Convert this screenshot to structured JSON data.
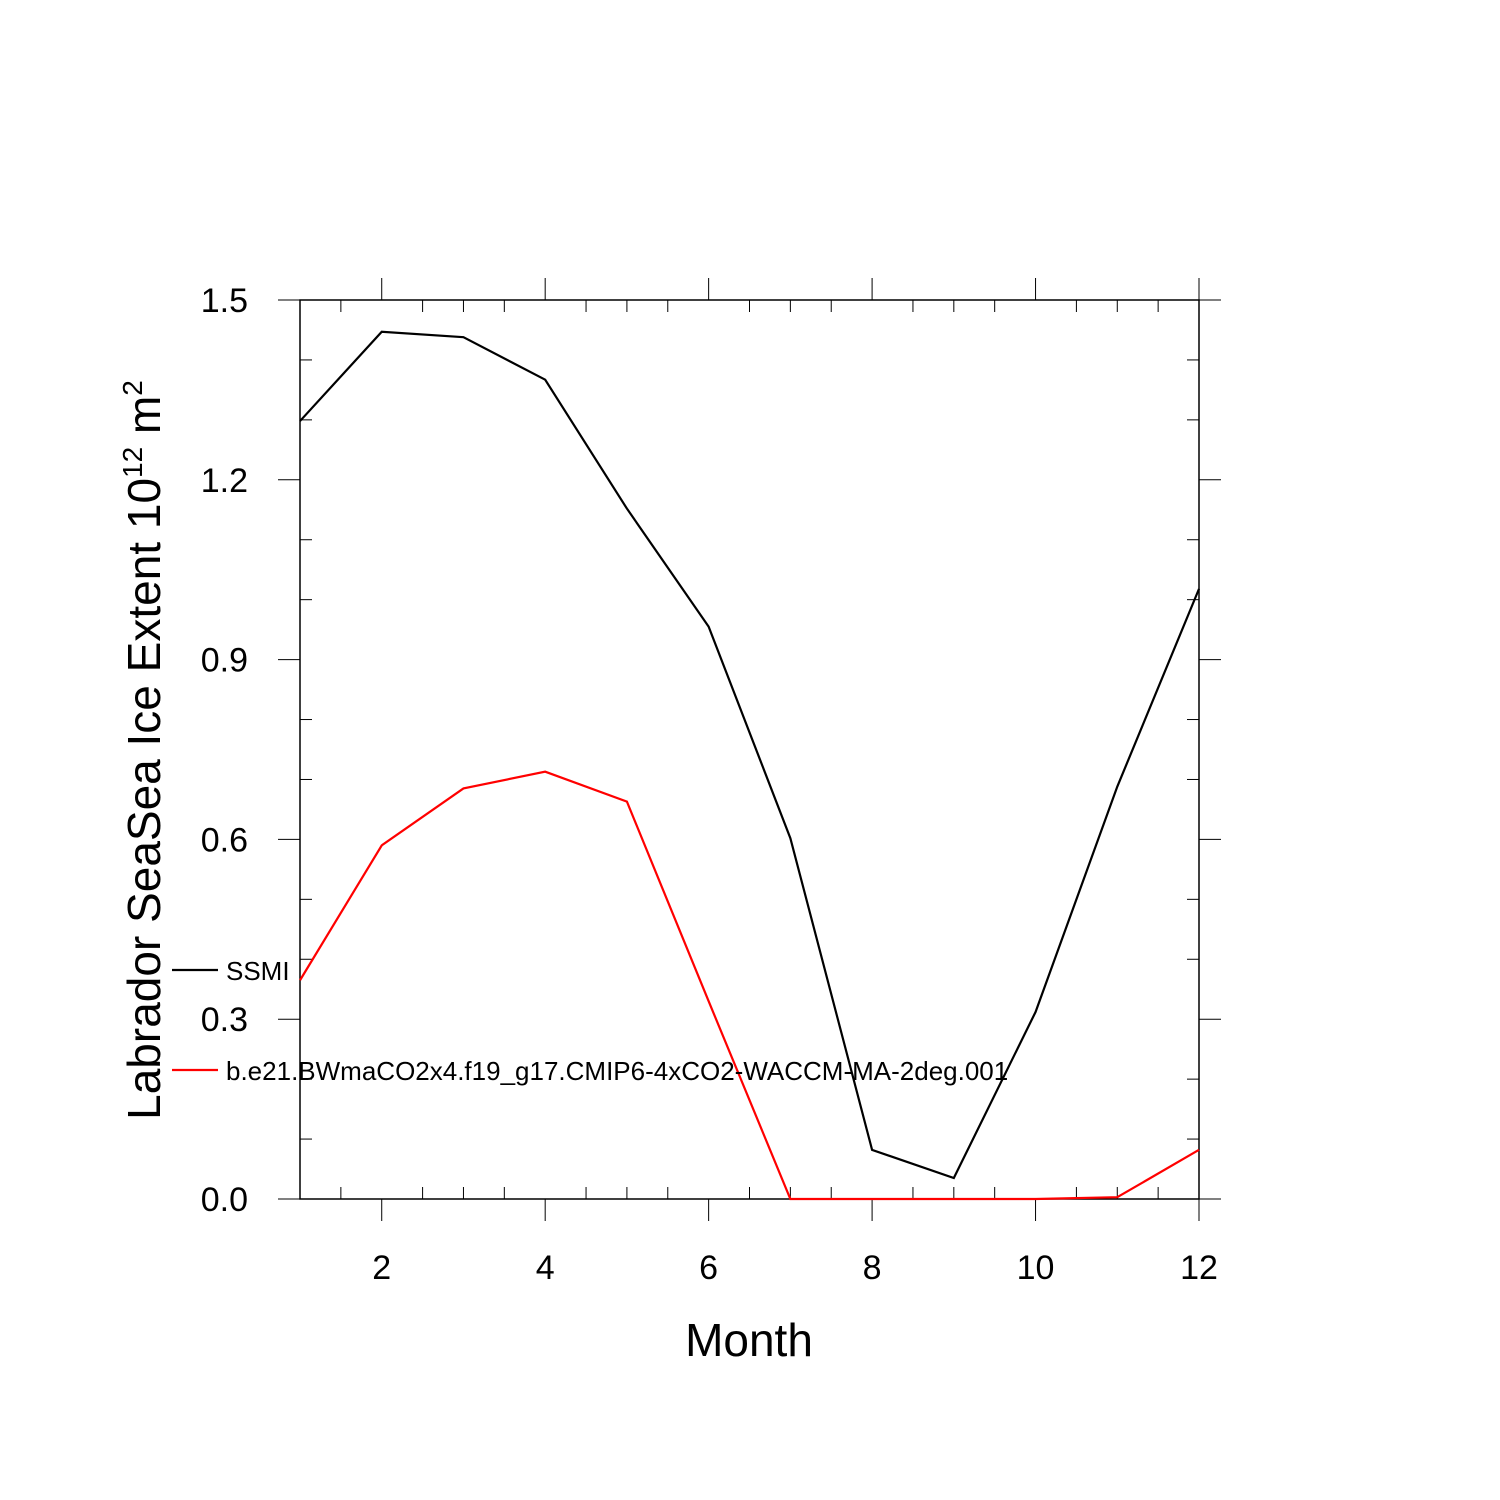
{
  "chart_data": {
    "type": "line",
    "xlabel": "Month",
    "ylabel": [
      "Labrador SeaSea Ice Extent 10",
      "12",
      " m",
      "2"
    ],
    "x": [
      1,
      2,
      3,
      4,
      5,
      6,
      7,
      8,
      9,
      10,
      11,
      12
    ],
    "series": [
      {
        "name": "SSMI",
        "color": "#000000",
        "values": [
          1.298,
          1.447,
          1.438,
          1.367,
          1.152,
          0.955,
          0.602,
          0.082,
          0.035,
          0.312,
          0.688,
          1.018
        ]
      },
      {
        "name": "b.e21.BWmaCO2x4.f19_g17.CMIP6-4xCO2-WACCM-MA-2deg.001",
        "color": "#ff0000",
        "values": [
          0.365,
          0.59,
          0.685,
          0.713,
          0.663,
          0.33,
          0.0,
          0.0,
          0.0,
          0.0,
          0.003,
          0.082
        ]
      }
    ],
    "xlim": [
      1,
      12
    ],
    "ylim": [
      0,
      1.5
    ],
    "xticks": [
      2,
      4,
      6,
      8,
      10,
      12
    ],
    "xminorticks": [
      1,
      1.5,
      2.5,
      3,
      3.5,
      4.5,
      5,
      5.5,
      6.5,
      7,
      7.5,
      8.5,
      9,
      9.5,
      10.5,
      11,
      11.5
    ],
    "yticks": [
      {
        "value": 0,
        "label": "0.0"
      },
      0.3,
      0.6,
      0.9,
      1.2,
      1.5
    ],
    "yminorticks": [
      0.1,
      0.2,
      0.4,
      0.5,
      0.7,
      0.8,
      1.0,
      1.1,
      1.3,
      1.4
    ],
    "grid": false,
    "legend_position": "left"
  }
}
